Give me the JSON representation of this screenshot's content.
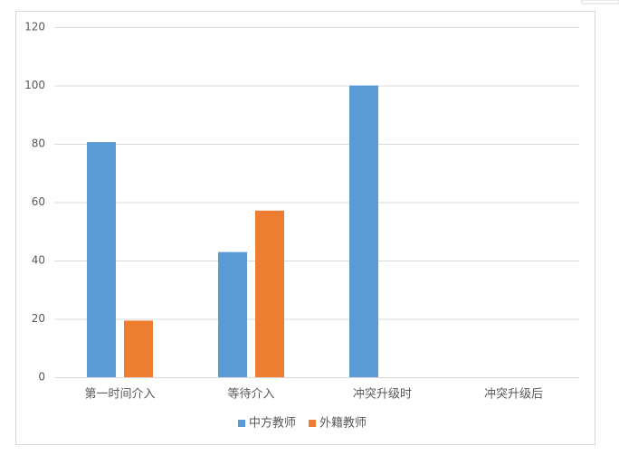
{
  "chart_data": {
    "type": "bar",
    "categories": [
      "第一时间介入",
      "等待介入",
      "冲突升级时",
      "冲突升级后"
    ],
    "series": [
      {
        "name": "中方教师",
        "color": "#5b9bd5",
        "values": [
          80.6,
          42.9,
          100,
          0
        ]
      },
      {
        "name": "外籍教师",
        "color": "#ed7d31",
        "values": [
          19.4,
          57.1,
          0,
          0
        ]
      }
    ],
    "ylim": [
      0,
      120
    ],
    "yticks": [
      0,
      20,
      40,
      60,
      80,
      100,
      120
    ],
    "grid": true,
    "legend": "bottom"
  }
}
